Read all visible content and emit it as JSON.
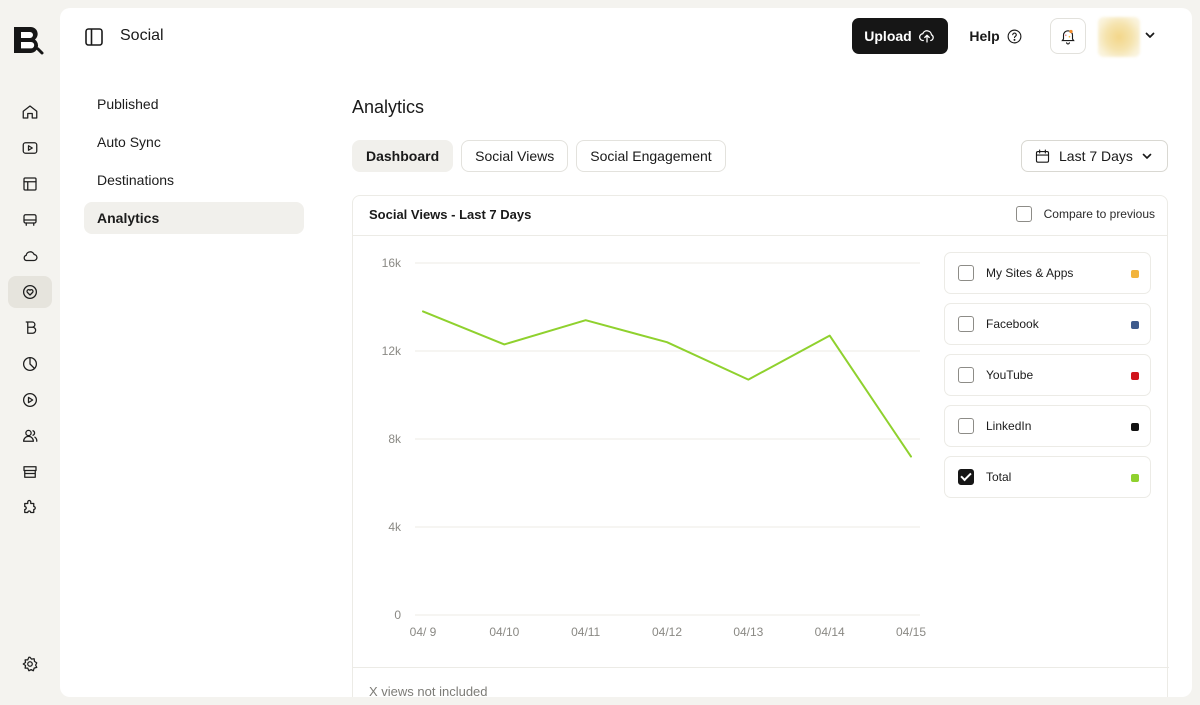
{
  "app": {
    "section_title": "Social"
  },
  "header": {
    "upload_label": "Upload",
    "help_label": "Help"
  },
  "rail": {
    "icons": [
      "home-icon",
      "video-icon",
      "grid-table-icon",
      "bus-icon",
      "cloud-icon",
      "heart-badge-icon",
      "brand-icon",
      "pie-chart-icon",
      "play-circle-icon",
      "users-icon",
      "store-icon",
      "puzzle-icon",
      "settings-icon"
    ],
    "active": "heart-badge-icon"
  },
  "subnav": {
    "items": [
      {
        "label": "Published"
      },
      {
        "label": "Auto Sync"
      },
      {
        "label": "Destinations"
      },
      {
        "label": "Analytics",
        "active": true
      }
    ]
  },
  "page": {
    "title": "Analytics"
  },
  "tabs": [
    {
      "label": "Dashboard",
      "active": true
    },
    {
      "label": "Social Views"
    },
    {
      "label": "Social Engagement"
    }
  ],
  "range": {
    "label": "Last 7 Days"
  },
  "card": {
    "title": "Social Views - Last 7 Days",
    "compare_label": "Compare to previous",
    "compare_checked": false,
    "footer": "X views not included"
  },
  "legend": [
    {
      "label": "My Sites & Apps",
      "color": "#f2b43c",
      "checked": false
    },
    {
      "label": "Facebook",
      "color": "#3d5a8c",
      "checked": false
    },
    {
      "label": "YouTube",
      "color": "#d0131b",
      "checked": false
    },
    {
      "label": "LinkedIn",
      "color": "#111111",
      "checked": false
    },
    {
      "label": "Total",
      "color": "#8fd12e",
      "checked": true
    }
  ],
  "chart_data": {
    "type": "line",
    "title": "Social Views - Last 7 Days",
    "xlabel": "",
    "ylabel": "",
    "x": [
      "04/ 9",
      "04/10",
      "04/11",
      "04/12",
      "04/13",
      "04/14",
      "04/15"
    ],
    "ylim": [
      0,
      16000
    ],
    "yticks": [
      0,
      4000,
      8000,
      12000,
      16000
    ],
    "ytick_labels": [
      "0",
      "4k",
      "8k",
      "12k",
      "16k"
    ],
    "grid": true,
    "legend_placement": "right",
    "series": [
      {
        "name": "Total",
        "color": "#8fd12e",
        "values": [
          13800,
          12300,
          13400,
          12400,
          10700,
          12700,
          7200
        ]
      }
    ]
  }
}
